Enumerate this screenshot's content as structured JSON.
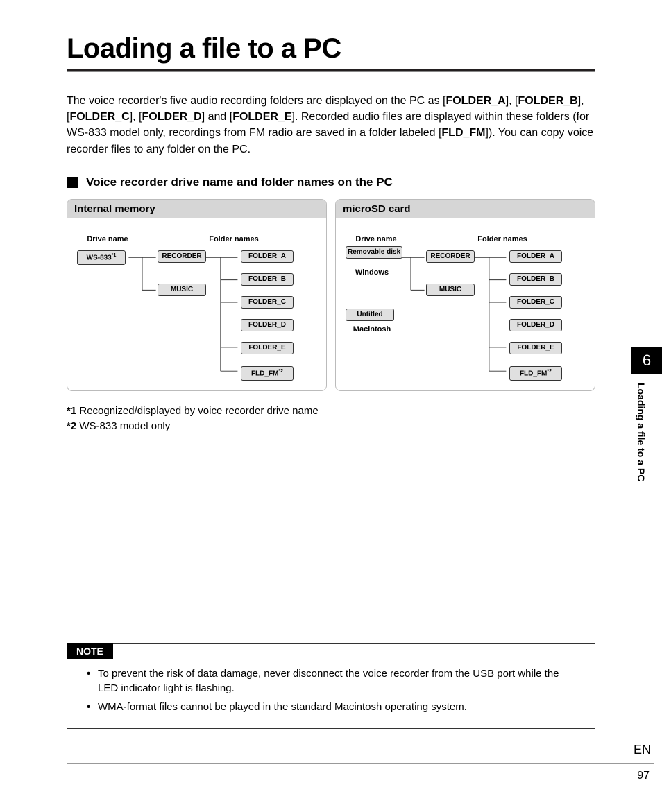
{
  "title": "Loading a file to a PC",
  "intro_html": "The voice recorder's five audio recording folders are displayed on the PC as [<b>FOLDER_A</b>], [<b>FOLDER_B</b>], [<b>FOLDER_C</b>], [<b>FOLDER_D</b>] and [<b>FOLDER_E</b>]. Recorded audio files are displayed within these folders (for WS-833 model only, recordings from FM radio are saved in a folder labeled [<b>FLD_FM</b>]). You can copy voice recorder files to any folder on the PC.",
  "section_heading": "Voice recorder drive name and folder names on the PC",
  "panels": {
    "internal": {
      "title": "Internal memory",
      "drive_label": "Drive name",
      "folder_label": "Folder names",
      "drive": "WS-833",
      "drive_sup": "*1",
      "mid": [
        "RECORDER",
        "MUSIC"
      ],
      "folders": [
        "FOLDER_A",
        "FOLDER_B",
        "FOLDER_C",
        "FOLDER_D",
        "FOLDER_E"
      ],
      "last": "FLD_FM",
      "last_sup": "*2"
    },
    "sd": {
      "title": "microSD card",
      "drive_label": "Drive name",
      "folder_label": "Folder names",
      "drive1": "Removable disk",
      "cap1": "Windows",
      "drive2": "Untitled",
      "cap2": "Macintosh",
      "mid": [
        "RECORDER",
        "MUSIC"
      ],
      "folders": [
        "FOLDER_A",
        "FOLDER_B",
        "FOLDER_C",
        "FOLDER_D",
        "FOLDER_E"
      ],
      "last": "FLD_FM",
      "last_sup": "*2"
    }
  },
  "footnotes": [
    {
      "mark": "*1",
      "text": "Recognized/displayed by voice recorder drive name"
    },
    {
      "mark": "*2",
      "text": "WS-833 model only"
    }
  ],
  "note_label": "NOTE",
  "notes": [
    "To prevent the risk of data damage, never disconnect the voice recorder from the USB port while the LED indicator light is flashing.",
    "WMA-format files cannot be played in the standard Macintosh operating system."
  ],
  "side": {
    "chapter": "6",
    "label": "Loading a file to a PC"
  },
  "lang": "EN",
  "page_num": "97",
  "colors": {
    "node_bg": "#e0e0e0",
    "panel_head_bg": "#d6d6d6",
    "line": "#333333"
  }
}
